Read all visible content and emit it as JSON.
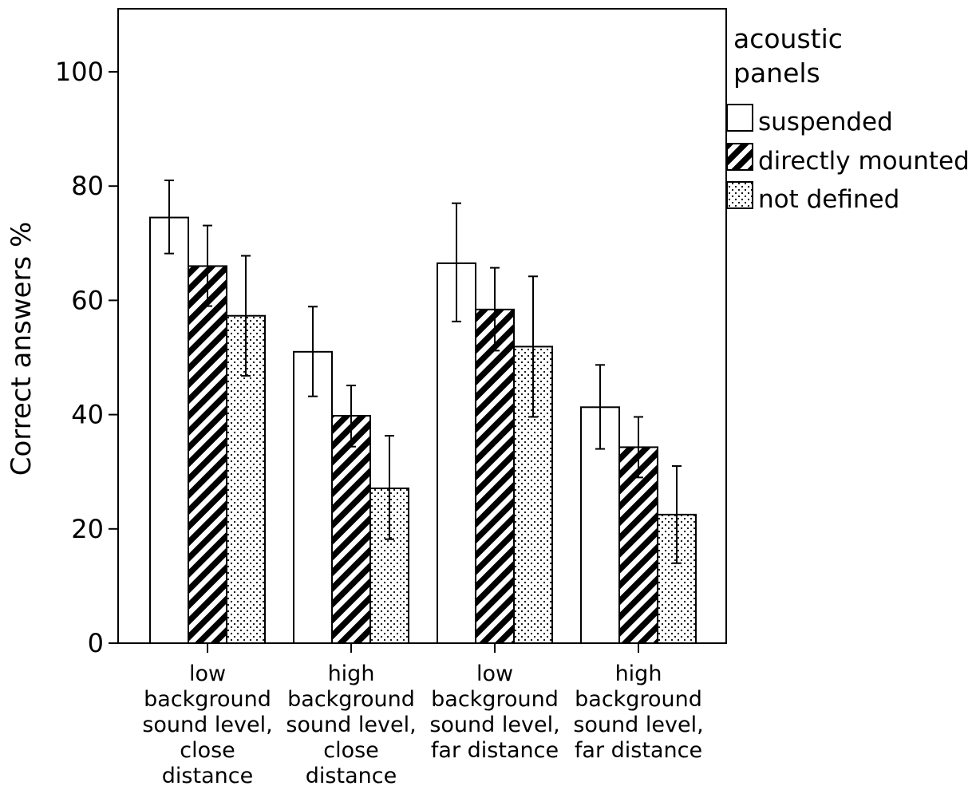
{
  "chart_data": {
    "type": "bar",
    "title": "",
    "xlabel": "",
    "ylabel": "Correct answers %",
    "ylim": [
      0,
      110
    ],
    "yticks": [
      0,
      20,
      40,
      60,
      80,
      100
    ],
    "grid": false,
    "legend": {
      "title_lines": [
        "acoustic",
        "panels"
      ],
      "placement": "top-right outside plot"
    },
    "categories": [
      [
        "low",
        "background",
        "sound level,",
        "close",
        "distance"
      ],
      [
        "high",
        "background",
        "sound level,",
        "close",
        "distance"
      ],
      [
        "low",
        "background",
        "sound level,",
        "far distance"
      ],
      [
        "high",
        "background",
        "sound level,",
        "far distance"
      ]
    ],
    "series": [
      {
        "name": "suspended",
        "fill": "plain",
        "values": [
          74.5,
          51,
          66.5,
          41.3
        ],
        "error_low": [
          68.2,
          43.2,
          56.3,
          34
        ],
        "error_high": [
          81,
          58.9,
          77,
          48.7
        ]
      },
      {
        "name": "directly mounted",
        "fill": "diagonal-hatch",
        "values": [
          66,
          39.8,
          58.4,
          34.3
        ],
        "error_low": [
          59,
          34.4,
          51.2,
          29
        ],
        "error_high": [
          73.1,
          45.1,
          65.7,
          39.6
        ]
      },
      {
        "name": "not defined",
        "fill": "dots",
        "values": [
          57.3,
          27.1,
          51.9,
          22.5
        ],
        "error_low": [
          46.8,
          18.2,
          39.6,
          14
        ],
        "error_high": [
          67.8,
          36.3,
          64.2,
          31
        ]
      }
    ],
    "colors": {
      "bar_fill": "#ffffff",
      "stroke": "#000000"
    }
  }
}
